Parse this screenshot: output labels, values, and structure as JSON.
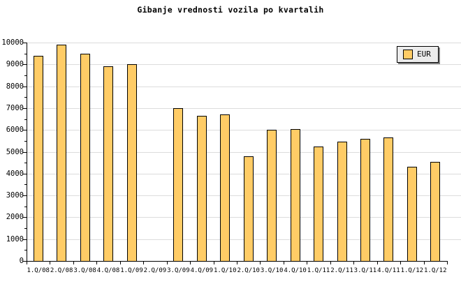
{
  "title": "Gibanje vrednosti vozila po kvartalih",
  "legend": {
    "label": "EUR"
  },
  "colors": {
    "background": "#ffffff",
    "bar_fill": "#ffcc66",
    "bar_border": "#000000",
    "gridline": "#dcdcdc",
    "axis": "#000000",
    "legend_bg": "#ececec",
    "legend_shadow": "#808080",
    "text": "#000000"
  },
  "chart_data": {
    "type": "bar",
    "title": "Gibanje vrednosti vozila po kvartalih",
    "categories": [
      "1.Q/08",
      "2.Q/08",
      "3.Q/08",
      "4.Q/08",
      "1.Q/09",
      "2.Q/09",
      "3.Q/09",
      "4.Q/09",
      "1.Q/10",
      "2.Q/10",
      "3.Q/10",
      "4.Q/10",
      "1.Q/11",
      "2.Q/11",
      "3.Q/11",
      "4.Q/11",
      "1.Q/12",
      "1.Q/12"
    ],
    "series": [
      {
        "name": "EUR",
        "values": [
          9400,
          9900,
          9500,
          8900,
          9000,
          0,
          7000,
          6650,
          6700,
          4800,
          6000,
          6050,
          5250,
          5450,
          5600,
          5650,
          4300,
          4550
        ]
      }
    ],
    "xlabel": "",
    "ylabel": "",
    "ylim": [
      0,
      10000
    ],
    "yticks": [
      0,
      1000,
      2000,
      3000,
      4000,
      5000,
      6000,
      7000,
      8000,
      9000,
      10000
    ],
    "minor_ytick_interval": 500,
    "grid": "horizontal",
    "legend_position": "top-right",
    "missing_categories": [
      "2.Q/09"
    ]
  }
}
